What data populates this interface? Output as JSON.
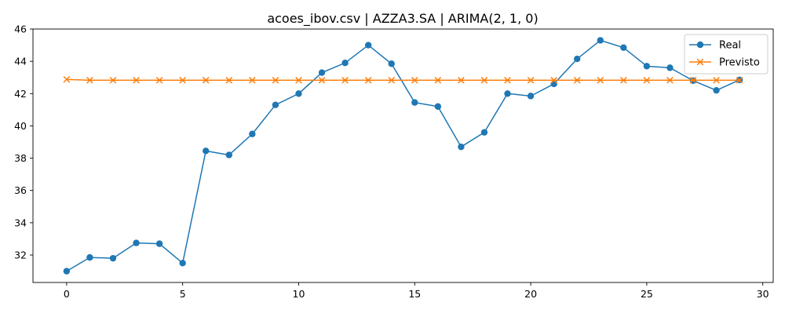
{
  "chart_data": {
    "type": "line",
    "title": "acoes_ibov.csv | AZZA3.SA | ARIMA(2, 1, 0)",
    "xlabel": "",
    "ylabel": "",
    "x": [
      0,
      1,
      2,
      3,
      4,
      5,
      6,
      7,
      8,
      9,
      10,
      11,
      12,
      13,
      14,
      15,
      16,
      17,
      18,
      19,
      20,
      21,
      22,
      23,
      24,
      25,
      26,
      27,
      28,
      29
    ],
    "xlim": [
      -1.45,
      30.45
    ],
    "ylim": [
      30.3,
      46.0
    ],
    "xticks": [
      0,
      5,
      10,
      15,
      20,
      25,
      30
    ],
    "yticks": [
      32,
      34,
      36,
      38,
      40,
      42,
      44,
      46
    ],
    "grid": false,
    "legend_position": "top-right",
    "series": [
      {
        "name": "Real",
        "color": "#1f77b4",
        "marker": "circle",
        "values": [
          31.0,
          31.85,
          31.8,
          32.75,
          32.7,
          31.5,
          38.45,
          38.2,
          39.5,
          41.3,
          42.0,
          43.3,
          43.9,
          45.0,
          43.85,
          41.45,
          41.2,
          38.7,
          39.6,
          42.0,
          41.85,
          42.6,
          44.15,
          45.3,
          44.85,
          43.7,
          43.6,
          42.8,
          42.2,
          42.85
        ]
      },
      {
        "name": "Previsto",
        "color": "#ff7f0e",
        "marker": "x",
        "values": [
          42.88,
          42.83,
          42.83,
          42.83,
          42.83,
          42.83,
          42.83,
          42.83,
          42.83,
          42.83,
          42.83,
          42.83,
          42.83,
          42.83,
          42.83,
          42.83,
          42.83,
          42.83,
          42.83,
          42.83,
          42.83,
          42.83,
          42.83,
          42.83,
          42.83,
          42.83,
          42.83,
          42.83,
          42.83,
          42.83
        ]
      }
    ]
  }
}
